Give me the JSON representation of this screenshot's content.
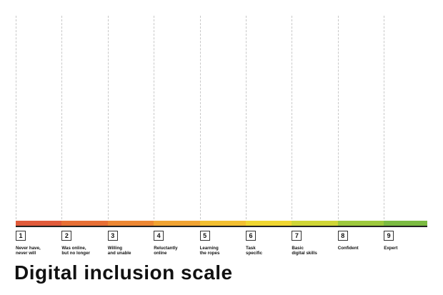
{
  "title": "Digital inclusion scale",
  "scale": {
    "steps": [
      {
        "number": "1",
        "label": "Never have,\nnever will",
        "color": "#e05a3a"
      },
      {
        "number": "2",
        "label": "Was online,\nbut no longer",
        "color": "#e76f35"
      },
      {
        "number": "3",
        "label": "Willing\nand unable",
        "color": "#ec8733"
      },
      {
        "number": "4",
        "label": "Reluctantly\nonline",
        "color": "#f0a332"
      },
      {
        "number": "5",
        "label": "Learning\nthe ropes",
        "color": "#f2bf30"
      },
      {
        "number": "6",
        "label": "Task\nspecific",
        "color": "#efd630"
      },
      {
        "number": "7",
        "label": "Basic\ndigital skills",
        "color": "#cfd535"
      },
      {
        "number": "8",
        "label": "Confident",
        "color": "#9cc83c"
      },
      {
        "number": "9",
        "label": "Expert",
        "color": "#7bbb42"
      }
    ]
  }
}
